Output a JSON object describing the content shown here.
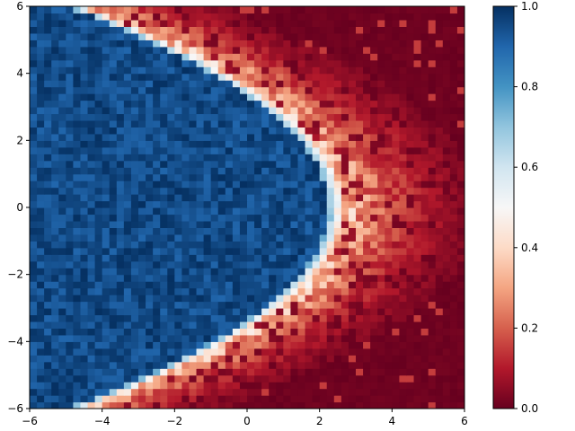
{
  "chart_data": {
    "type": "heatmap",
    "title": "",
    "xlabel": "",
    "ylabel": "",
    "xlim": [
      -6,
      6
    ],
    "ylim": [
      -6,
      6
    ],
    "x_ticks": [
      -6,
      -4,
      -2,
      0,
      2,
      4,
      6
    ],
    "y_ticks": [
      -6,
      -4,
      -2,
      0,
      2,
      4,
      6
    ],
    "x_tick_labels": [
      "−6",
      "−4",
      "−2",
      "0",
      "2",
      "4",
      "6"
    ],
    "y_tick_labels": [
      "−6",
      "−4",
      "−2",
      "0",
      "2",
      "4",
      "6"
    ],
    "grid": false,
    "colormap": "RdBu",
    "color_range": [
      0,
      1
    ],
    "colorbar_ticks": [
      0.0,
      0.2,
      0.4,
      0.6,
      0.8,
      1.0
    ],
    "colorbar_tick_labels": [
      "0.0",
      "0.2",
      "0.4",
      "0.6",
      "0.8",
      "1.0"
    ],
    "grid_size": [
      60,
      60
    ],
    "region_boundary": {
      "description_type": "parabola x = a - b*y^2",
      "a": 2.5,
      "b": 0.2,
      "edge_width": 0.25
    },
    "colors": {
      "low": "#67001f",
      "mid": "#f7f7f7",
      "high": "#053061"
    }
  }
}
